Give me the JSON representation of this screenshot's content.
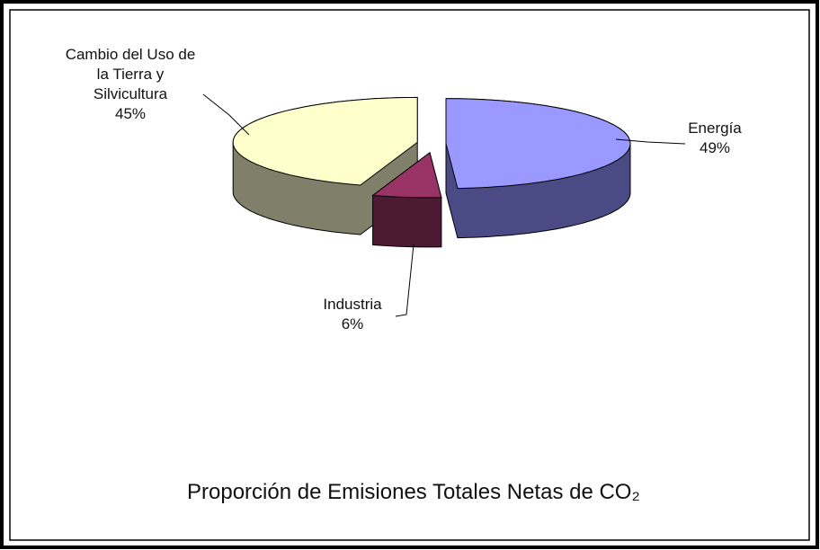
{
  "chart_data": {
    "type": "pie3d",
    "title": "Proporción de Emisiones Totales Netas de CO₂",
    "categories": [
      "Energía",
      "Industria",
      "Cambio del Uso de la Tierra y Silvicultura"
    ],
    "values": [
      49,
      6,
      45
    ],
    "value_labels": [
      "49%",
      "6%",
      "45%"
    ],
    "colors": [
      "#9999ff",
      "#993366",
      "#ffffcc"
    ],
    "side_colors": [
      "#4a4a85",
      "#4d1a33",
      "#80806a"
    ]
  }
}
